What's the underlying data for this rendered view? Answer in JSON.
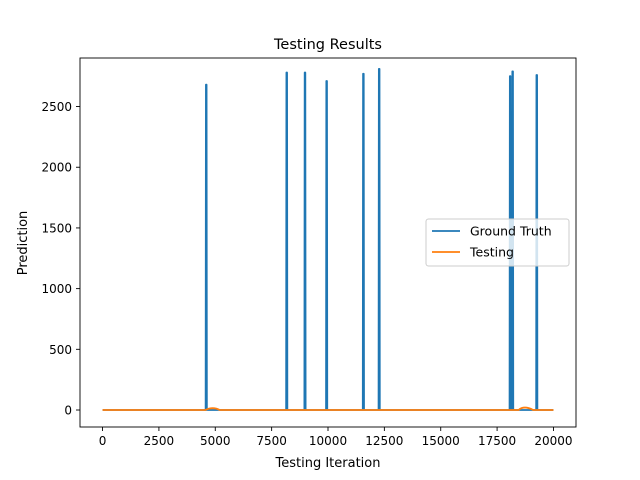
{
  "chart_data": {
    "type": "line",
    "title": "Testing Results",
    "xlabel": "Testing Iteration",
    "ylabel": "Prediction",
    "xlim": [
      -1000,
      21000
    ],
    "ylim": [
      -140,
      2900
    ],
    "x_ticks": [
      0,
      2500,
      5000,
      7500,
      10000,
      12500,
      15000,
      17500,
      20000
    ],
    "x_tick_labels": [
      "0",
      "2500",
      "5000",
      "7500",
      "10000",
      "12500",
      "15000",
      "17500",
      "20000"
    ],
    "y_ticks": [
      0,
      500,
      1000,
      1500,
      2000,
      2500
    ],
    "y_tick_labels": [
      "0",
      "500",
      "1000",
      "1500",
      "2000",
      "2500"
    ],
    "grid": false,
    "legend_position": "center-right",
    "series": [
      {
        "name": "Ground Truth",
        "color": "#1f77b4",
        "baseline": 0,
        "x_end": 20000,
        "spikes": [
          {
            "x": 4600,
            "peak": 2680
          },
          {
            "x": 8170,
            "peak": 2780
          },
          {
            "x": 8980,
            "peak": 2780
          },
          {
            "x": 9940,
            "peak": 2710
          },
          {
            "x": 11570,
            "peak": 2770
          },
          {
            "x": 12270,
            "peak": 2810
          },
          {
            "x": 18080,
            "peak": 2750
          },
          {
            "x": 18190,
            "peak": 2790
          },
          {
            "x": 19260,
            "peak": 2760
          }
        ]
      },
      {
        "name": "Testing",
        "color": "#ff7f0e",
        "baseline": 0,
        "x_end": 20000,
        "bumps": [
          {
            "x_start": 4550,
            "x_peak": 4900,
            "x_end": 5200,
            "peak": 15
          },
          {
            "x_start": 18450,
            "x_peak": 18700,
            "x_end": 19100,
            "peak": 20
          }
        ]
      }
    ]
  }
}
